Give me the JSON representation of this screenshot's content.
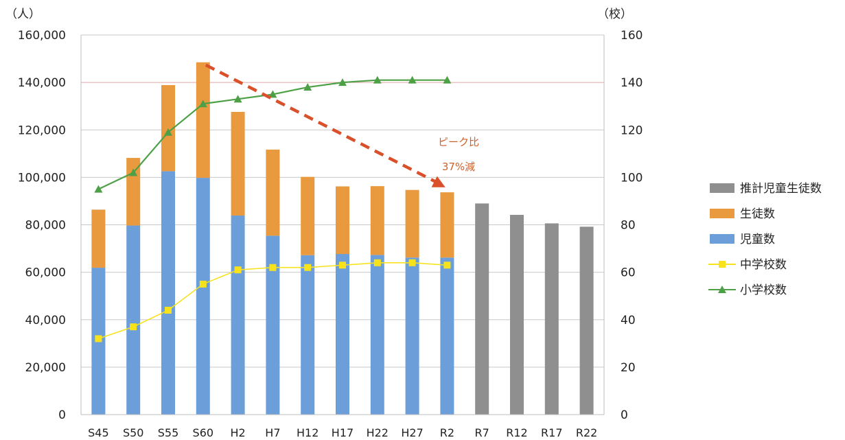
{
  "chart_data": {
    "type": "bar",
    "categories": [
      "S45",
      "S50",
      "S55",
      "S60",
      "H2",
      "H7",
      "H12",
      "H17",
      "H22",
      "H27",
      "R2",
      "R7",
      "R12",
      "R17",
      "R22"
    ],
    "stacked": true,
    "series": [
      {
        "name": "推計児童生徒数",
        "type": "bar",
        "axis": "left",
        "values": [
          null,
          null,
          null,
          null,
          null,
          null,
          null,
          null,
          null,
          null,
          null,
          89000,
          84200,
          80600,
          79200
        ]
      },
      {
        "name": "生徒数",
        "type": "bar",
        "axis": "left",
        "values": [
          24500,
          28500,
          36300,
          48700,
          43700,
          36300,
          33000,
          28500,
          29000,
          28500,
          27500,
          null,
          null,
          null,
          null
        ]
      },
      {
        "name": "児童数",
        "type": "bar",
        "axis": "left",
        "values": [
          61900,
          79700,
          102600,
          99800,
          83900,
          75400,
          67200,
          67700,
          67300,
          66200,
          66200,
          null,
          null,
          null,
          null
        ]
      },
      {
        "name": "中学校数",
        "type": "line",
        "axis": "right",
        "values": [
          32,
          37,
          44,
          55,
          61,
          62,
          62,
          63,
          64,
          64,
          63,
          null,
          null,
          null,
          null
        ]
      },
      {
        "name": "小学校数",
        "type": "line",
        "axis": "right",
        "values": [
          95,
          102,
          119,
          131,
          133,
          135,
          138,
          140,
          141,
          141,
          141,
          null,
          null,
          null,
          null
        ]
      }
    ],
    "y_left": {
      "unit": "（人）",
      "min": 0,
      "max": 160000,
      "ticks": [
        "0",
        "20,000",
        "40,000",
        "60,000",
        "80,000",
        "100,000",
        "120,000",
        "140,000",
        "160,000"
      ]
    },
    "y_right": {
      "unit": "（校）",
      "min": 0,
      "max": 160,
      "ticks": [
        "0",
        "20",
        "40",
        "60",
        "80",
        "100",
        "120",
        "140",
        "160"
      ]
    },
    "reference_line": {
      "axis": "left",
      "value": 140000,
      "color": "#e3a4a4"
    },
    "annotation": {
      "lines": [
        "ピーク比",
        "37%減"
      ],
      "arrow_from": "S60",
      "arrow_to": "R2",
      "color": "#d9502a"
    },
    "legend_position": "right",
    "grid": true,
    "colors": {
      "推計児童生徒数": "#8f8f8f",
      "生徒数": "#ea9a3e",
      "児童数": "#6c9fd9",
      "中学校数": "#f7e21c",
      "小学校数": "#4ea047",
      "arrow": "#d9502a"
    }
  }
}
